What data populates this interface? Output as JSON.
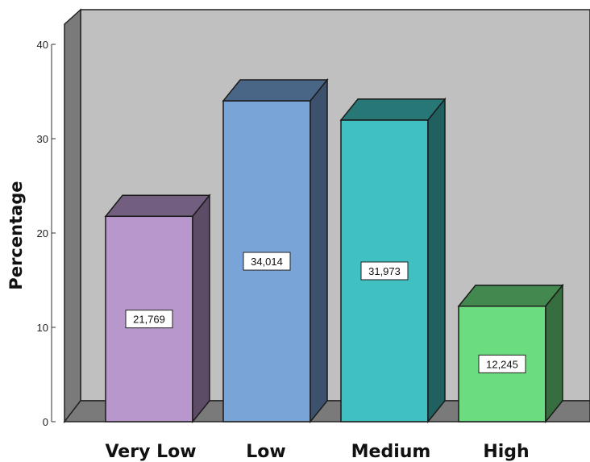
{
  "chart_data": {
    "type": "bar",
    "ylabel": "Percentage",
    "xlabel": "",
    "ylim": [
      0,
      40
    ],
    "yticks": [
      0,
      10,
      20,
      30,
      40
    ],
    "categories": [
      "Very Low",
      "Low",
      "Medium",
      "High"
    ],
    "values": [
      21.769,
      34.014,
      31.973,
      12.245
    ],
    "data_labels": [
      "21,769",
      "34,014",
      "31,973",
      "12,245"
    ],
    "colors": [
      "#b898cc",
      "#78a4d8",
      "#40c0c0",
      "#6cdc80"
    ],
    "style": "3d",
    "grid": false,
    "legend": "none"
  }
}
